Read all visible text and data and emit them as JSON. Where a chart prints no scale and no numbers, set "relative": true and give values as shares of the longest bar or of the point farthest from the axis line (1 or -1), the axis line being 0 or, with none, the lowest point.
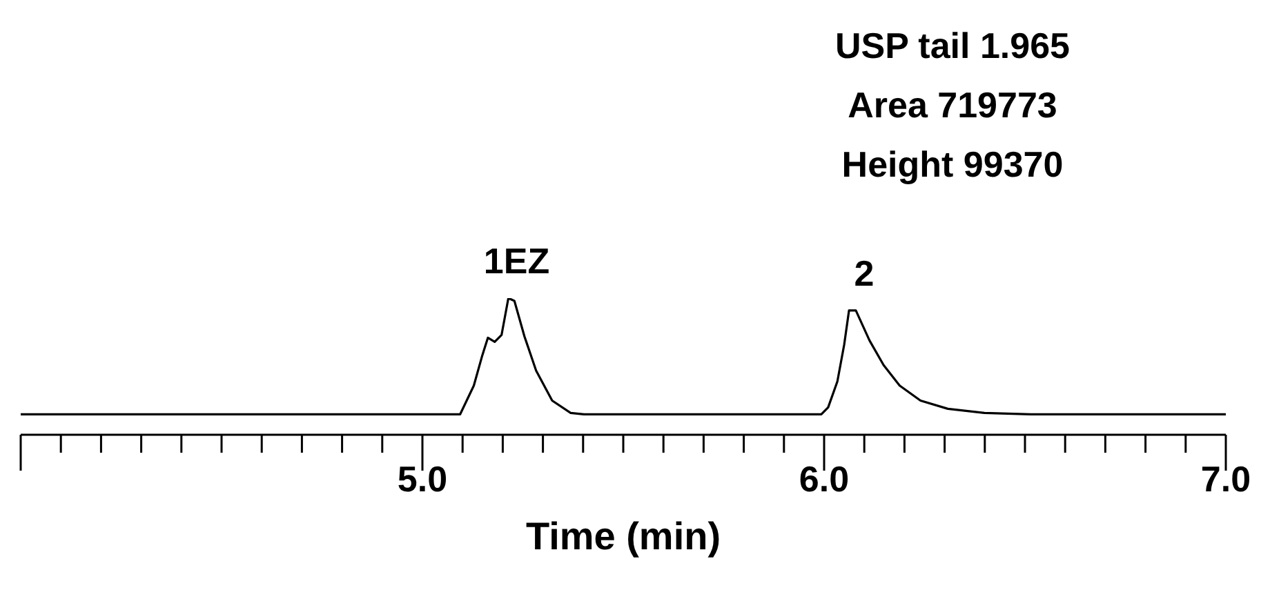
{
  "chart_data": {
    "type": "line",
    "relative": true,
    "xlabel": "Time (min)",
    "color": "#000000",
    "x": [
      4.0,
      5.08,
      5.094,
      5.128,
      5.149,
      5.163,
      5.18,
      5.197,
      5.214,
      5.229,
      5.254,
      5.283,
      5.323,
      5.369,
      5.402,
      5.993,
      6.01,
      6.033,
      6.05,
      6.062,
      6.079,
      6.113,
      6.148,
      6.188,
      6.24,
      6.308,
      6.399,
      6.514,
      7.0
    ],
    "values": [
      0.15,
      0.15,
      0.15,
      0.36,
      0.58,
      0.71,
      0.68,
      0.73,
      1.0,
      0.98,
      0.72,
      0.47,
      0.25,
      0.16,
      0.15,
      0.15,
      0.2,
      0.39,
      0.66,
      0.91,
      0.91,
      0.69,
      0.51,
      0.36,
      0.25,
      0.19,
      0.16,
      0.15,
      0.15
    ],
    "xlim": [
      4.0,
      7.0
    ],
    "xticks": [
      {
        "value": 4.0,
        "label": null
      },
      {
        "value": 4.1,
        "label": null
      },
      {
        "value": 4.2,
        "label": null
      },
      {
        "value": 4.3,
        "label": null
      },
      {
        "value": 4.4,
        "label": null
      },
      {
        "value": 4.5,
        "label": null
      },
      {
        "value": 4.6,
        "label": null
      },
      {
        "value": 4.7,
        "label": null
      },
      {
        "value": 4.8,
        "label": null
      },
      {
        "value": 4.9,
        "label": null
      },
      {
        "value": 5.0,
        "label": "5.0"
      },
      {
        "value": 5.1,
        "label": null
      },
      {
        "value": 5.2,
        "label": null
      },
      {
        "value": 5.3,
        "label": null
      },
      {
        "value": 5.4,
        "label": null
      },
      {
        "value": 5.5,
        "label": null
      },
      {
        "value": 5.6,
        "label": null
      },
      {
        "value": 5.7,
        "label": null
      },
      {
        "value": 5.8,
        "label": null
      },
      {
        "value": 5.9,
        "label": null
      },
      {
        "value": 6.0,
        "label": "6.0"
      },
      {
        "value": 6.1,
        "label": null
      },
      {
        "value": 6.2,
        "label": null
      },
      {
        "value": 6.3,
        "label": null
      },
      {
        "value": 6.4,
        "label": null
      },
      {
        "value": 6.5,
        "label": null
      },
      {
        "value": 6.6,
        "label": null
      },
      {
        "value": 6.7,
        "label": null
      },
      {
        "value": 6.8,
        "label": null
      },
      {
        "value": 6.9,
        "label": null
      },
      {
        "value": 7.0,
        "label": "7.0"
      }
    ],
    "annotations": [
      {
        "text": "1EZ",
        "x": 5.214,
        "y": 1.0
      },
      {
        "text": "2",
        "x": 6.079,
        "y": 0.91
      },
      "USP tail 1.965\nArea 719773\nHeight 99370"
    ]
  }
}
